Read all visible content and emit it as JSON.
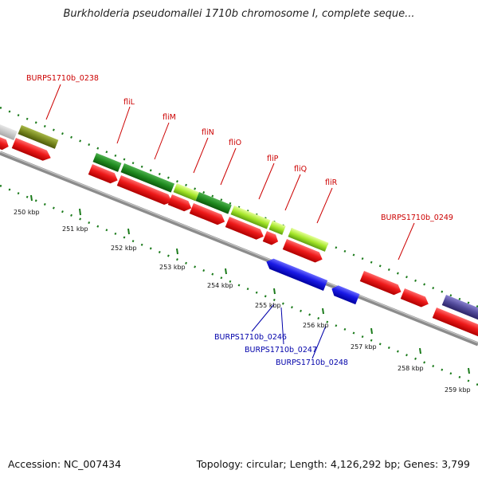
{
  "title": "Burkholderia pseudomallei 1710b chromosome I, complete seque...",
  "footer": {
    "accession": "Accession: NC_007434",
    "topology": "Topology: circular; Length: 4,126,292 bp; Genes: 3,799"
  },
  "colors": {
    "forward_cds": "#e81818",
    "reverse_cds": "#1a1ae6",
    "backbone": "#8c8c8c",
    "label_forward": "#cc0000",
    "label_reverse": "#0000aa",
    "tick": "#1a7a1a"
  },
  "scale_labels": [
    "250 kbp",
    "251 kbp",
    "252 kbp",
    "253 kbp",
    "254 kbp",
    "255 kbp",
    "256 kbp",
    "257 kbp",
    "258 kbp",
    "259 kbp"
  ],
  "gene_labels_forward": [
    "BURPS1710b_0238",
    "fliL",
    "fliM",
    "fliN",
    "fliO",
    "fliP",
    "fliQ",
    "fliR",
    "BURPS1710b_0249"
  ],
  "gene_labels_reverse": [
    "BURPS1710b_0246",
    "BURPS1710b_0247",
    "BURPS1710b_0248"
  ]
}
